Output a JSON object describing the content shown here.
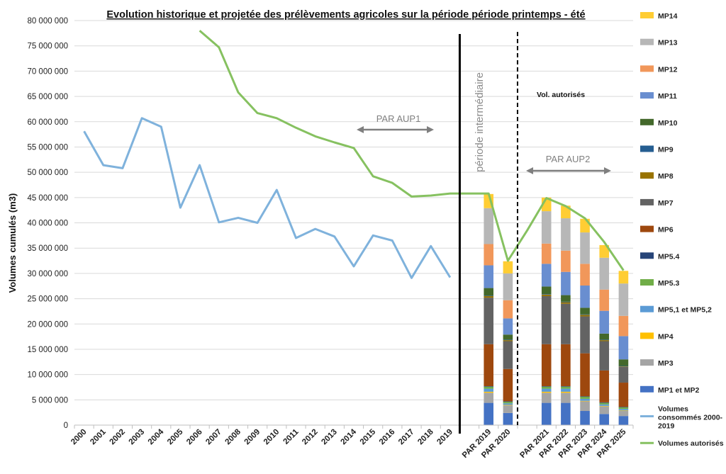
{
  "chart_data": {
    "type": "bar",
    "title": "Evolution historique et projetée des prélèvements agricoles sur la période période printemps - été",
    "ylabel": "Volumes cumulés (m3)",
    "ylim": [
      0,
      80000000
    ],
    "ytick_step": 5000000,
    "grid": true,
    "legend_position": "right",
    "categories": [
      "2000",
      "2001",
      "2002",
      "2003",
      "2004",
      "2005",
      "2006",
      "2007",
      "2008",
      "2009",
      "2010",
      "2011",
      "2012",
      "2013",
      "2014",
      "2015",
      "2016",
      "2017",
      "2018",
      "2019",
      "",
      "PAR 2019",
      "PAR 2020",
      "",
      "PAR 2021",
      "PAR 2022",
      "PAR 2023",
      "PAR 2024",
      "PAR 2025"
    ],
    "lines": [
      {
        "name": "Volumes consommés 2000-2019",
        "color": "#7fb2dc",
        "values": [
          58100000,
          51400000,
          50800000,
          60700000,
          59000000,
          43000000,
          51400000,
          40100000,
          41000000,
          40000000,
          46500000,
          37000000,
          38800000,
          37300000,
          31400000,
          37500000,
          36500000,
          29100000,
          35400000,
          29200000,
          null,
          null,
          null,
          null,
          null,
          null,
          null,
          null,
          null
        ]
      },
      {
        "name": "Volumes autorisés",
        "color": "#86c160",
        "values": [
          null,
          null,
          null,
          null,
          null,
          null,
          78000000,
          74700000,
          65800000,
          61700000,
          60700000,
          58800000,
          57100000,
          55900000,
          54800000,
          49200000,
          47900000,
          45200000,
          45400000,
          45800000,
          45800000,
          45800000,
          32500000,
          38500000,
          44900000,
          43300000,
          40900000,
          36200000,
          30600000
        ]
      }
    ],
    "stacks": [
      {
        "name": "MP1 et MP2",
        "color": "#4472c4",
        "values": [
          4400000,
          2400000,
          4400000,
          4400000,
          2800000,
          2200000,
          1800000
        ]
      },
      {
        "name": "MP3",
        "color": "#a5a5a5",
        "values": [
          2000000,
          1500000,
          2000000,
          2000000,
          1900000,
          1500000,
          1000000
        ]
      },
      {
        "name": "MP4",
        "color": "#ffc000",
        "values": [
          200000,
          100000,
          200000,
          200000,
          100000,
          100000,
          100000
        ]
      },
      {
        "name": "MP5,1 et MP5,2",
        "color": "#5b9bd5",
        "values": [
          600000,
          300000,
          600000,
          600000,
          400000,
          300000,
          300000
        ]
      },
      {
        "name": "MP5.3",
        "color": "#70ad47",
        "values": [
          400000,
          300000,
          400000,
          400000,
          400000,
          300000,
          300000
        ]
      },
      {
        "name": "MP5.4",
        "color": "#264478",
        "values": [
          100000,
          100000,
          100000,
          100000,
          100000,
          100000,
          100000
        ]
      },
      {
        "name": "MP6",
        "color": "#9e480e",
        "values": [
          8300000,
          6400000,
          8300000,
          8300000,
          8500000,
          6300000,
          4800000
        ]
      },
      {
        "name": "MP7",
        "color": "#636363",
        "values": [
          9200000,
          5500000,
          9500000,
          8000000,
          7300000,
          5800000,
          3100000
        ]
      },
      {
        "name": "MP8",
        "color": "#997300",
        "values": [
          300000,
          200000,
          300000,
          300000,
          300000,
          200000,
          100000
        ]
      },
      {
        "name": "MP9",
        "color": "#255e91",
        "values": [
          100000,
          100000,
          100000,
          100000,
          100000,
          100000,
          100000
        ]
      },
      {
        "name": "MP10",
        "color": "#43682b",
        "values": [
          1500000,
          1000000,
          1500000,
          1300000,
          1300000,
          1200000,
          1300000
        ]
      },
      {
        "name": "MP11",
        "color": "#698ed0",
        "values": [
          4500000,
          3200000,
          4500000,
          4600000,
          4400000,
          4500000,
          4600000
        ]
      },
      {
        "name": "MP12",
        "color": "#f1975a",
        "values": [
          4200000,
          3600000,
          4000000,
          4200000,
          4300000,
          4200000,
          4000000
        ]
      },
      {
        "name": "MP13",
        "color": "#b7b7b7",
        "values": [
          7100000,
          5300000,
          6400000,
          6400000,
          6200000,
          6300000,
          6400000
        ]
      },
      {
        "name": "MP14",
        "color": "#ffcd33",
        "values": [
          2800000,
          2400000,
          2700000,
          2500000,
          2700000,
          2500000,
          2500000
        ]
      }
    ],
    "stack_categories": [
      "PAR 2019",
      "PAR 2020",
      "PAR 2021",
      "PAR 2022",
      "PAR 2023",
      "PAR 2024",
      "PAR 2025"
    ],
    "annotations": {
      "aup1": "PAR AUP1",
      "aup2": "PAR AUP2",
      "intermediate": "période intermédiaire",
      "authorized": "Vol. autorisés"
    },
    "legend_order": [
      "MP14",
      "MP13",
      "MP12",
      "MP11",
      "MP10",
      "MP9",
      "MP8",
      "MP7",
      "MP6",
      "MP5.4",
      "MP5.3",
      "MP5,1 et MP5,2",
      "MP4",
      "MP3",
      "MP1 et MP2",
      "Volumes consommés 2000-2019",
      "Volumes autorisés"
    ]
  }
}
